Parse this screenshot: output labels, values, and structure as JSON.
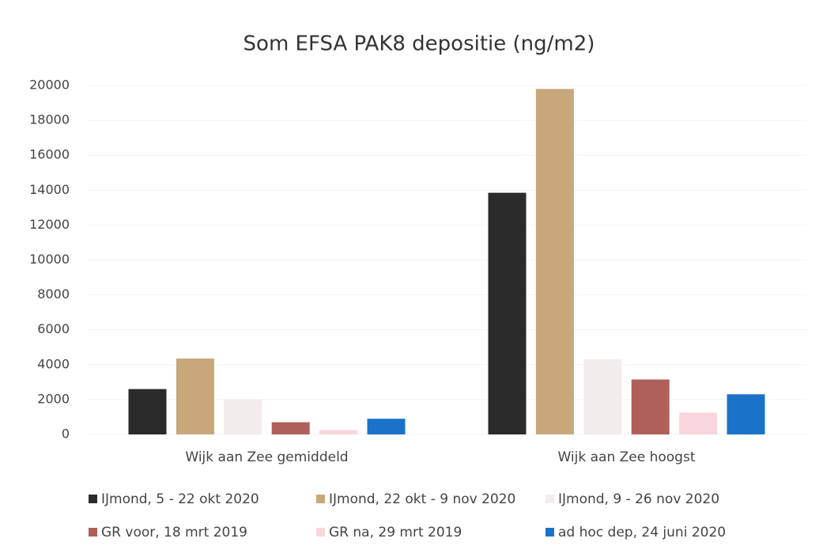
{
  "chart_data": {
    "type": "bar",
    "title": "Som EFSA PAK8 depositie (ng/m2)",
    "categories": [
      "Wijk aan Zee gemiddeld",
      "Wijk aan Zee hoogst"
    ],
    "series": [
      {
        "name": "IJmond, 5 - 22 okt 2020",
        "color": "#2b2b2b",
        "values": [
          2600,
          13850
        ]
      },
      {
        "name": "IJmond, 22 okt - 9 nov 2020",
        "color": "#c8a87a",
        "values": [
          4350,
          19800
        ]
      },
      {
        "name": "IJmond, 9 - 26 nov 2020",
        "color": "#f2ecec",
        "values": [
          2000,
          4300
        ]
      },
      {
        "name": "GR voor, 18 mrt 2019",
        "color": "#b0605a",
        "values": [
          700,
          3150
        ]
      },
      {
        "name": "GR na, 29 mrt 2019",
        "color": "#f8d6de",
        "values": [
          250,
          1250
        ]
      },
      {
        "name": "ad hoc dep, 24 juni 2020",
        "color": "#1a73c9",
        "values": [
          900,
          2300
        ]
      }
    ],
    "ylim": [
      0,
      20000
    ],
    "yticks": [
      0,
      2000,
      4000,
      6000,
      8000,
      10000,
      12000,
      14000,
      16000,
      18000,
      20000
    ],
    "grid": true,
    "legend": "bottom"
  }
}
